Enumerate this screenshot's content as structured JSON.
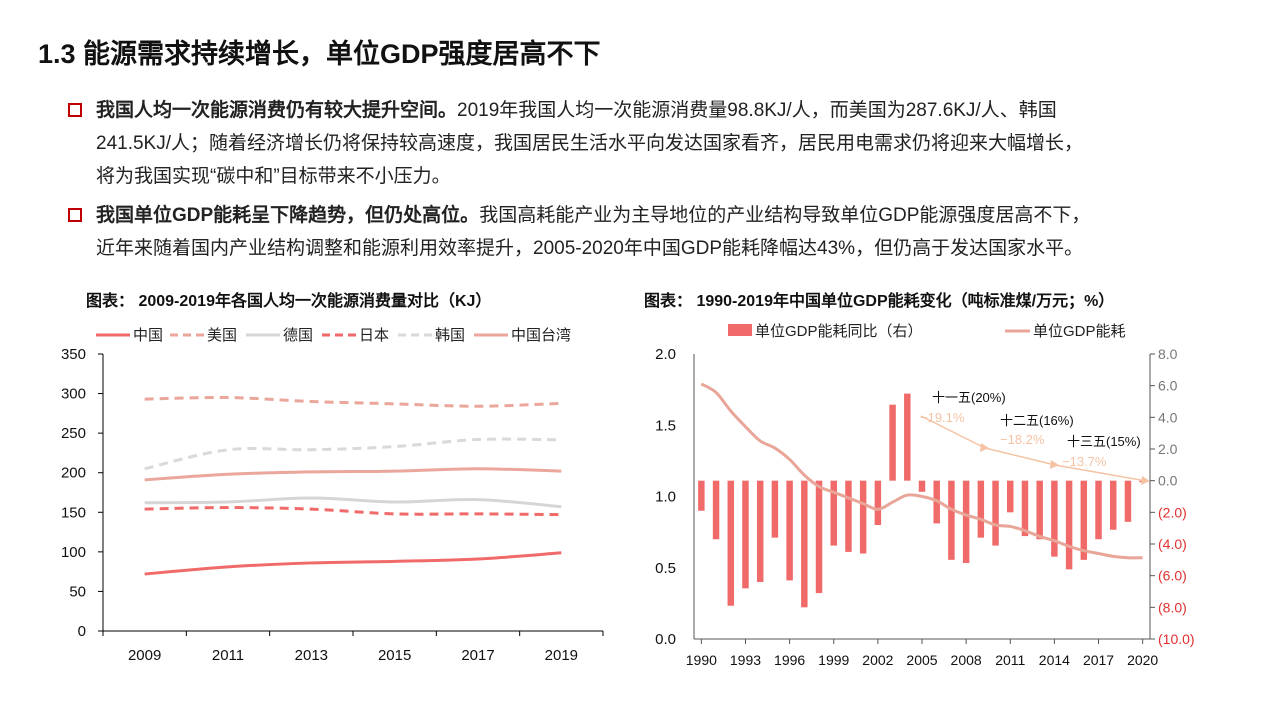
{
  "header": {
    "title": "1.3 能源需求持续增长，单位GDP强度居高不下"
  },
  "bullets": [
    {
      "bold": "我国人均一次能源消费仍有较大提升空间。",
      "lines": [
        "2019年我国人均一次能源消费量98.8KJ/人，而美国为287.6KJ/人、韩国",
        "241.5KJ/人；随着经济增长仍将保持较高速度，我国居民生活水平向发达国家看齐，居民用电需求仍将迎来大幅增长，",
        "将为我国实现“碳中和”目标带来不小压力。"
      ]
    },
    {
      "bold": "我国单位GDP能耗呈下降趋势，但仍处高位。",
      "lines": [
        "我国高耗能产业为主导地位的产业结构导致单位GDP能源强度居高不下，",
        "近年来随着国内产业结构调整和能源利用效率提升，2005-2020年中国GDP能耗降幅达43%，但仍高于发达国家水平。"
      ]
    }
  ],
  "colors": {
    "accent": "#c00000",
    "bar": "#f06a6a",
    "line_right": "#e8a598",
    "annotation": "#f5c3a4"
  },
  "chart_data": [
    {
      "type": "line",
      "title": "图表： 2009-2019年各国人均一次能源消费量对比（KJ）",
      "categories": [
        "2009",
        "2011",
        "2013",
        "2015",
        "2017",
        "2019"
      ],
      "ylim": [
        0,
        350
      ],
      "yticks": [
        0,
        50,
        100,
        150,
        200,
        250,
        300,
        350
      ],
      "grid": false,
      "legend": "top",
      "series": [
        {
          "name": "中国",
          "values": [
            72,
            81,
            86,
            88,
            91,
            98.8
          ],
          "color": "#f06a6a",
          "dash": false
        },
        {
          "name": "美国",
          "values": [
            293,
            295,
            290,
            287,
            284,
            287.6
          ],
          "color": "#eba69b",
          "dash": true
        },
        {
          "name": "德国",
          "values": [
            162,
            163,
            168,
            163,
            166,
            157
          ],
          "color": "#d6d6d6",
          "dash": false
        },
        {
          "name": "日本",
          "values": [
            154,
            156,
            154,
            148,
            148,
            147
          ],
          "color": "#f06a6a",
          "dash": true
        },
        {
          "name": "韩国",
          "values": [
            205,
            229,
            229,
            233,
            242,
            241.5
          ],
          "color": "#d9d9d9",
          "dash": true
        },
        {
          "name": "中国台湾",
          "values": [
            191,
            198,
            201,
            202,
            205,
            202
          ],
          "color": "#eba69b",
          "dash": false
        }
      ]
    },
    {
      "type": "bar+line",
      "title": "图表： 1990-2019年中国单位GDP能耗变化（吨标准煤/万元；%）",
      "x": [
        1990,
        1991,
        1992,
        1993,
        1994,
        1995,
        1996,
        1997,
        1998,
        1999,
        2000,
        2001,
        2002,
        2003,
        2004,
        2005,
        2006,
        2007,
        2008,
        2009,
        2010,
        2011,
        2012,
        2013,
        2014,
        2015,
        2016,
        2017,
        2018,
        2019,
        2020
      ],
      "xticks": [
        "1990",
        "1993",
        "1996",
        "1999",
        "2002",
        "2005",
        "2008",
        "2011",
        "2014",
        "2017",
        "2020"
      ],
      "ylim_left": [
        0,
        2.0
      ],
      "yticks_left": [
        "0.0",
        "0.5",
        "1.0",
        "1.5",
        "2.0"
      ],
      "ylim_right": [
        -10,
        8
      ],
      "yticks_right": [
        "(10.0)",
        "(8.0)",
        "(6.0)",
        "(4.0)",
        "(2.0)",
        "0.0",
        "2.0",
        "4.0",
        "6.0",
        "8.0"
      ],
      "legend": "top",
      "series": [
        {
          "name": "单位GDP能耗同比（右）",
          "type": "bar",
          "axis": "right",
          "values": [
            -1.9,
            -3.7,
            -7.9,
            -6.8,
            -6.4,
            -3.6,
            -6.3,
            -8.0,
            -7.1,
            -4.1,
            -4.5,
            -4.6,
            -2.8,
            4.8,
            5.5,
            -0.7,
            -2.7,
            -5.0,
            -5.2,
            -3.6,
            -4.1,
            -2.0,
            -3.5,
            -3.7,
            -4.8,
            -5.6,
            -5.0,
            -3.7,
            -3.1,
            -2.6,
            -0.1
          ]
        },
        {
          "name": "单位GDP能耗",
          "type": "line",
          "axis": "left",
          "values": [
            1.79,
            1.73,
            1.6,
            1.49,
            1.39,
            1.34,
            1.26,
            1.15,
            1.07,
            1.03,
            0.99,
            0.95,
            0.91,
            0.96,
            1.01,
            1.0,
            0.97,
            0.91,
            0.87,
            0.84,
            0.8,
            0.79,
            0.76,
            0.72,
            0.69,
            0.65,
            0.62,
            0.6,
            0.58,
            0.57,
            0.57
          ]
        }
      ],
      "annotations": [
        {
          "plan": "十一五(20%)",
          "actual": "−19.1%"
        },
        {
          "plan": "十二五(16%)",
          "actual": "−18.2%"
        },
        {
          "plan": "十三五(15%)",
          "actual": "−13.7%"
        }
      ]
    }
  ]
}
